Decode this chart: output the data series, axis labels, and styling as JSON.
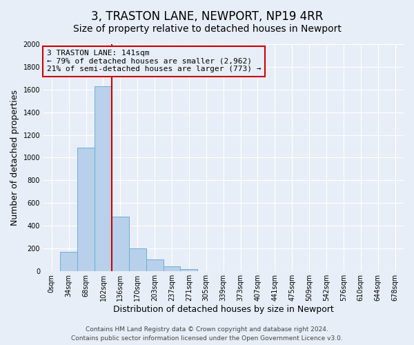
{
  "title": "3, TRASTON LANE, NEWPORT, NP19 4RR",
  "subtitle": "Size of property relative to detached houses in Newport",
  "xlabel": "Distribution of detached houses by size in Newport",
  "ylabel": "Number of detached properties",
  "bar_labels": [
    "0sqm",
    "34sqm",
    "68sqm",
    "102sqm",
    "136sqm",
    "170sqm",
    "203sqm",
    "237sqm",
    "271sqm",
    "305sqm",
    "339sqm",
    "373sqm",
    "407sqm",
    "441sqm",
    "475sqm",
    "509sqm",
    "542sqm",
    "576sqm",
    "610sqm",
    "644sqm",
    "678sqm"
  ],
  "bar_values": [
    0,
    170,
    1090,
    1630,
    480,
    200,
    100,
    40,
    20,
    0,
    0,
    0,
    0,
    0,
    0,
    0,
    0,
    0,
    0,
    0,
    0
  ],
  "bar_color": "#b8d0ea",
  "bar_edge_color": "#6aaed6",
  "highlight_color": "#cc0000",
  "vline_x": 4,
  "ylim": [
    0,
    2000
  ],
  "yticks": [
    0,
    200,
    400,
    600,
    800,
    1000,
    1200,
    1400,
    1600,
    1800,
    2000
  ],
  "annotation_title": "3 TRASTON LANE: 141sqm",
  "annotation_line1": "← 79% of detached houses are smaller (2,962)",
  "annotation_line2": "21% of semi-detached houses are larger (773) →",
  "footer_line1": "Contains HM Land Registry data © Crown copyright and database right 2024.",
  "footer_line2": "Contains public sector information licensed under the Open Government Licence v3.0.",
  "bg_color": "#e8eef7",
  "grid_color": "#ffffff",
  "title_fontsize": 12,
  "subtitle_fontsize": 10,
  "axis_label_fontsize": 9,
  "tick_fontsize": 7,
  "annotation_fontsize": 8,
  "footer_fontsize": 6.5
}
